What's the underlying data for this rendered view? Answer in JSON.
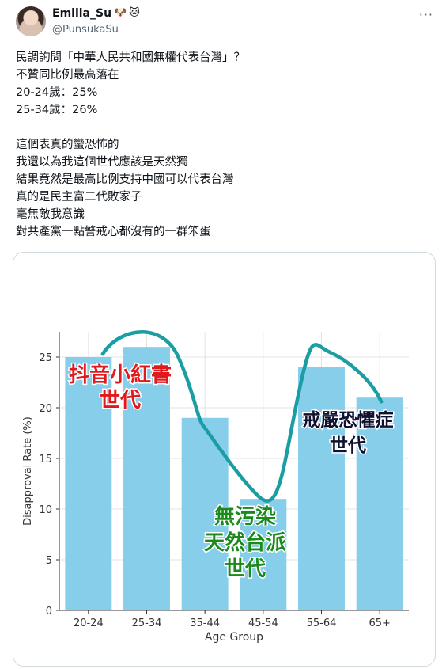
{
  "tweet": {
    "author": {
      "display_name": "Emilia_Su",
      "emojis": [
        "🐶",
        "🐱"
      ],
      "handle": "@PunsukaSu"
    },
    "more_icon": "more-horizontal-icon",
    "text_lines": [
      "民調詢問「中華人民共和國無權代表台灣」？",
      "不贊同比例最高落在",
      "20-24歲：25%",
      "25-34歲：26%",
      "",
      "這個表真的蠻恐怖的",
      "我還以為我這個世代應該是天然獨",
      "結果竟然是最高比例支持中國可以代表台灣",
      "真的是民主富二代敗家子",
      "毫無敵我意識",
      "對共產黨一點警戒心都沒有的一群笨蛋"
    ]
  },
  "chart_data": {
    "type": "bar",
    "categories": [
      "20-24",
      "25-34",
      "35-44",
      "45-54",
      "55-64",
      "65+"
    ],
    "values": [
      25,
      26,
      19,
      11,
      24,
      21
    ],
    "xlabel": "Age Group",
    "ylabel": "Disapproval Rate (%)",
    "ylim": [
      0,
      27.5
    ],
    "yticks": [
      0,
      5,
      10,
      15,
      20,
      25
    ],
    "grid": true,
    "bar_color": "#87ceeb",
    "annotations": [
      {
        "lines": [
          "抖音小紅書",
          "世代"
        ],
        "color": "#e0191c"
      },
      {
        "lines": [
          "無污染",
          "天然台派",
          "世代"
        ],
        "color": "#1b8a1b"
      },
      {
        "lines": [
          "戒嚴恐懼症",
          "世代"
        ],
        "color": "#101030"
      }
    ],
    "curve_color": "#1a9ea4"
  }
}
